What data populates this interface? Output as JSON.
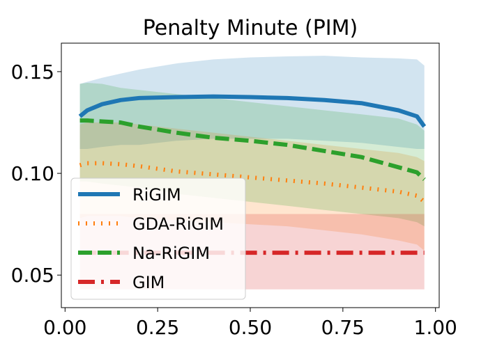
{
  "chart_data": {
    "type": "line",
    "title": "Penalty Minute (PIM)",
    "xlabel": "",
    "ylabel": "",
    "xlim": [
      -0.01,
      1.01
    ],
    "ylim": [
      0.034,
      0.164
    ],
    "xticks": [
      0.0,
      0.25,
      0.5,
      0.75,
      1.0
    ],
    "xtick_labels": [
      "0.00",
      "0.25",
      "0.50",
      "0.75",
      "1.00"
    ],
    "yticks": [
      0.05,
      0.1,
      0.15
    ],
    "ytick_labels": [
      "0.05",
      "0.10",
      "0.15"
    ],
    "grid": false,
    "legend_position": "lower-left",
    "x": [
      0.04,
      0.06,
      0.1,
      0.15,
      0.2,
      0.3,
      0.4,
      0.5,
      0.6,
      0.7,
      0.8,
      0.9,
      0.95,
      0.97
    ],
    "series": [
      {
        "name": "RiGIM",
        "color": "#1f77b4",
        "linestyle": "solid",
        "values": [
          0.128,
          0.131,
          0.134,
          0.136,
          0.137,
          0.1375,
          0.1378,
          0.1375,
          0.137,
          0.136,
          0.1345,
          0.131,
          0.128,
          0.123
        ],
        "lower": [
          0.112,
          0.112,
          0.113,
          0.114,
          0.114,
          0.116,
          0.117,
          0.117,
          0.117,
          0.116,
          0.115,
          0.113,
          0.112,
          0.112
        ],
        "upper": [
          0.144,
          0.145,
          0.147,
          0.149,
          0.151,
          0.154,
          0.156,
          0.157,
          0.1575,
          0.1578,
          0.157,
          0.1565,
          0.156,
          0.153
        ]
      },
      {
        "name": "GDA-RiGIM",
        "color": "#ff7f0e",
        "linestyle": "dotted",
        "values": [
          0.104,
          0.105,
          0.105,
          0.1045,
          0.1035,
          0.101,
          0.0995,
          0.098,
          0.0965,
          0.095,
          0.093,
          0.091,
          0.089,
          0.086
        ],
        "lower": [
          0.078,
          0.079,
          0.079,
          0.079,
          0.078,
          0.077,
          0.076,
          0.075,
          0.074,
          0.072,
          0.07,
          0.067,
          0.065,
          0.062
        ],
        "upper": [
          0.124,
          0.125,
          0.125,
          0.125,
          0.124,
          0.122,
          0.12,
          0.118,
          0.116,
          0.114,
          0.112,
          0.11,
          0.108,
          0.106
        ]
      },
      {
        "name": "Na-RiGIM",
        "color": "#2ca02c",
        "linestyle": "dashed",
        "values": [
          0.126,
          0.126,
          0.1255,
          0.125,
          0.123,
          0.12,
          0.1175,
          0.116,
          0.114,
          0.111,
          0.108,
          0.103,
          0.1005,
          0.097
        ],
        "lower": [
          0.096,
          0.096,
          0.095,
          0.094,
          0.093,
          0.09,
          0.088,
          0.086,
          0.084,
          0.082,
          0.08,
          0.078,
          0.076,
          0.074
        ],
        "upper": [
          0.144,
          0.1445,
          0.144,
          0.142,
          0.141,
          0.139,
          0.137,
          0.135,
          0.133,
          0.131,
          0.129,
          0.127,
          0.124,
          0.121
        ]
      },
      {
        "name": "GIM",
        "color": "#d62728",
        "linestyle": "dashdot",
        "values": [
          0.061,
          0.061,
          0.061,
          0.061,
          0.061,
          0.061,
          0.061,
          0.061,
          0.061,
          0.061,
          0.061,
          0.061,
          0.061,
          0.061
        ],
        "lower": [
          0.043,
          0.043,
          0.043,
          0.043,
          0.043,
          0.043,
          0.043,
          0.043,
          0.043,
          0.043,
          0.043,
          0.043,
          0.043,
          0.043
        ],
        "upper": [
          0.08,
          0.08,
          0.08,
          0.08,
          0.08,
          0.08,
          0.08,
          0.08,
          0.08,
          0.08,
          0.08,
          0.08,
          0.08,
          0.08
        ]
      }
    ]
  }
}
